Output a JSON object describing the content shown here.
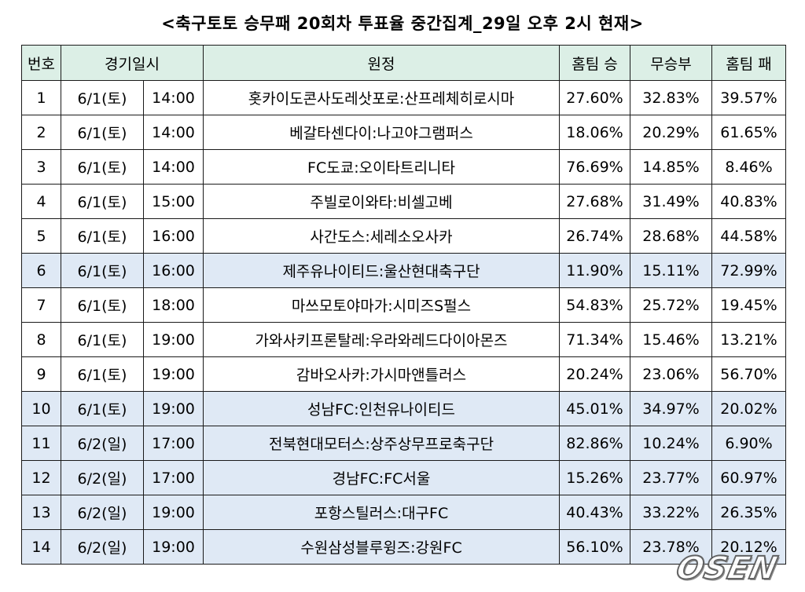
{
  "title": "<축구토토 승무패 20회차 투표율 중간집계_29일 오후 2시 현재>",
  "headers": {
    "no": "번호",
    "datetime": "경기일시",
    "match": "원정",
    "home_win": "홈팀 승",
    "draw": "무승부",
    "home_loss": "홈팀 패"
  },
  "rows": [
    {
      "no": "1",
      "date": "6/1(토)",
      "time": "14:00",
      "match": "홋카이도콘사도레삿포로:산프레체히로시마",
      "win": "27.60%",
      "draw": "32.83%",
      "loss": "39.57%",
      "bold": "loss",
      "hl": false
    },
    {
      "no": "2",
      "date": "6/1(토)",
      "time": "14:00",
      "match": "베갈타센다이:나고야그램퍼스",
      "win": "18.06%",
      "draw": "20.29%",
      "loss": "61.65%",
      "bold": "loss",
      "hl": false
    },
    {
      "no": "3",
      "date": "6/1(토)",
      "time": "14:00",
      "match": "FC도쿄:오이타트리니타",
      "win": "76.69%",
      "draw": "14.85%",
      "loss": "8.46%",
      "bold": "win",
      "hl": false
    },
    {
      "no": "4",
      "date": "6/1(토)",
      "time": "15:00",
      "match": "주빌로이와타:비셀고베",
      "win": "27.68%",
      "draw": "31.49%",
      "loss": "40.83%",
      "bold": "loss",
      "hl": false
    },
    {
      "no": "5",
      "date": "6/1(토)",
      "time": "16:00",
      "match": "사간도스:세레소오사카",
      "win": "26.74%",
      "draw": "28.68%",
      "loss": "44.58%",
      "bold": "loss",
      "hl": false
    },
    {
      "no": "6",
      "date": "6/1(토)",
      "time": "16:00",
      "match": "제주유나이티드:울산현대축구단",
      "win": "11.90%",
      "draw": "15.11%",
      "loss": "72.99%",
      "bold": "loss",
      "hl": true
    },
    {
      "no": "7",
      "date": "6/1(토)",
      "time": "18:00",
      "match": "마쓰모토야마가:시미즈S펄스",
      "win": "54.83%",
      "draw": "25.72%",
      "loss": "19.45%",
      "bold": "win",
      "hl": false
    },
    {
      "no": "8",
      "date": "6/1(토)",
      "time": "19:00",
      "match": "가와사키프론탈레:우라와레드다이아몬즈",
      "win": "71.34%",
      "draw": "15.46%",
      "loss": "13.21%",
      "bold": "win",
      "hl": false
    },
    {
      "no": "9",
      "date": "6/1(토)",
      "time": "19:00",
      "match": "감바오사카:가시마앤틀러스",
      "win": "20.24%",
      "draw": "23.06%",
      "loss": "56.70%",
      "bold": "loss",
      "hl": false
    },
    {
      "no": "10",
      "date": "6/1(토)",
      "time": "19:00",
      "match": "성남FC:인천유나이티드",
      "win": "45.01%",
      "draw": "34.97%",
      "loss": "20.02%",
      "bold": "win",
      "hl": true
    },
    {
      "no": "11",
      "date": "6/2(일)",
      "time": "17:00",
      "match": "전북현대모터스:상주상무프로축구단",
      "win": "82.86%",
      "draw": "10.24%",
      "loss": "6.90%",
      "bold": "win",
      "hl": true
    },
    {
      "no": "12",
      "date": "6/2(일)",
      "time": "17:00",
      "match": "경남FC:FC서울",
      "win": "15.26%",
      "draw": "23.77%",
      "loss": "60.97%",
      "bold": "loss",
      "hl": true
    },
    {
      "no": "13",
      "date": "6/2(일)",
      "time": "19:00",
      "match": "포항스틸러스:대구FC",
      "win": "40.43%",
      "draw": "33.22%",
      "loss": "26.35%",
      "bold": "win",
      "hl": true
    },
    {
      "no": "14",
      "date": "6/2(일)",
      "time": "19:00",
      "match": "수원삼성블루윙즈:강원FC",
      "win": "56.10%",
      "draw": "23.78%",
      "loss": "20.12%",
      "bold": "win",
      "hl": true
    }
  ],
  "watermark": "OSEN",
  "colors": {
    "header_bg": "#dcefe6",
    "highlight_row_bg": "#dfe9f5",
    "border": "#1a1a1a"
  }
}
